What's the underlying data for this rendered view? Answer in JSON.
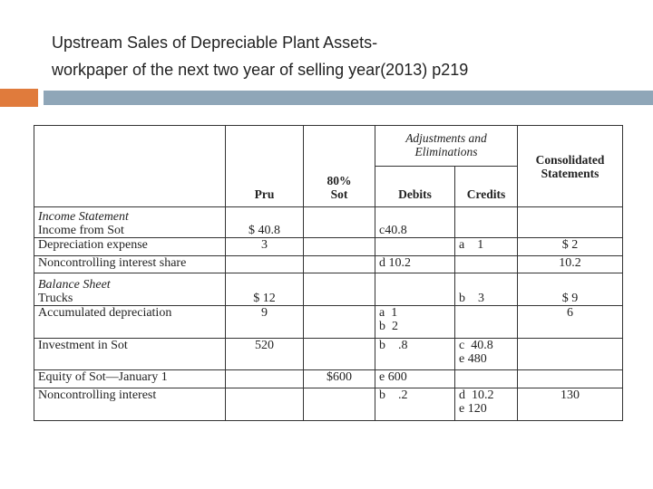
{
  "header": {
    "title_lines": [
      "Upstream Sales of Depreciable Plant Assets-",
      "workpaper of the next two year of selling year(2013) p219"
    ]
  },
  "table": {
    "columns": {
      "pru": "Pru",
      "sot": [
        "80%",
        "Sot"
      ],
      "adjustments": [
        "Adjustments and",
        "Eliminations"
      ],
      "debits": "Debits",
      "credits": "Credits",
      "consolidated": [
        "Consolidated",
        "Statements"
      ]
    },
    "rows": [
      {
        "section": "Income Statement",
        "cells": [
          "Income from Sot",
          "$ 40.8",
          null,
          "c40.8",
          null,
          null
        ]
      },
      {
        "cells": [
          "Depreciation expense",
          "3",
          null,
          null,
          "a    1",
          "$ 2"
        ]
      },
      {
        "cells": [
          "Noncontrolling interest share",
          null,
          null,
          "d 10.2",
          null,
          "10.2"
        ]
      },
      {
        "section": "Balance Sheet",
        "cells": [
          "Trucks",
          "$ 12",
          null,
          null,
          "b    3",
          "$ 9"
        ]
      },
      {
        "cells": [
          "Accumulated depreciation",
          "9",
          null,
          [
            "a  1",
            "b  2"
          ],
          null,
          "6"
        ]
      },
      {
        "cells": [
          "Investment in Sot",
          "520",
          null,
          "b    .8",
          [
            "c  40.8",
            "e 480"
          ],
          null
        ]
      },
      {
        "cells": [
          "Equity of Sot—January 1",
          null,
          "$600",
          "e 600",
          null,
          null
        ]
      },
      {
        "cells": [
          "Noncontrolling interest",
          null,
          null,
          "b    .2",
          [
            "d  10.2",
            "e 120"
          ],
          "130"
        ]
      }
    ]
  }
}
